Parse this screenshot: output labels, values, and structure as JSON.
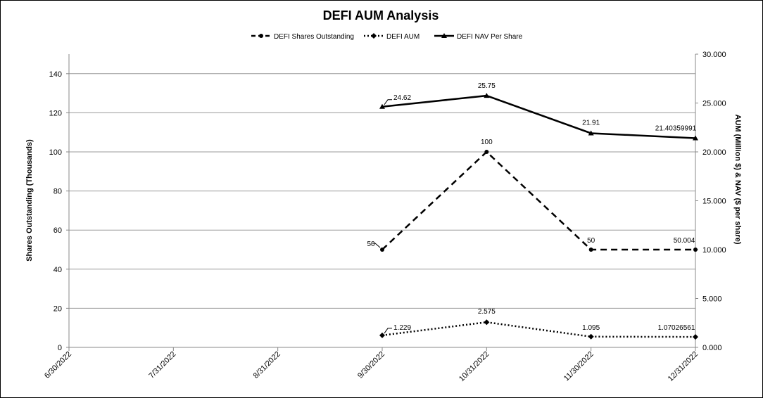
{
  "chart_data": {
    "type": "line",
    "title": "DEFI AUM Analysis",
    "x": [
      "6/30/2022",
      "7/31/2022",
      "8/31/2022",
      "9/30/2022",
      "10/31/2022",
      "11/30/2022",
      "12/31/2022"
    ],
    "ylabel_left": "Shares Outstanding (Thousands)",
    "ylabel_right": "AUM (Million $) & NAV ($ per share)",
    "ylim_left": [
      0,
      150
    ],
    "ylim_right": [
      0,
      30
    ],
    "yticks_left": [
      "0",
      "20",
      "40",
      "60",
      "80",
      "100",
      "120",
      "140"
    ],
    "yticks_right": [
      "0.000",
      "5.000",
      "10.000",
      "15.000",
      "20.000",
      "25.000",
      "30.000"
    ],
    "grid": true,
    "legend_position": "top",
    "series": [
      {
        "name": "DEFI Shares Outstanding",
        "axis": "left",
        "style": "dashed",
        "marker": "circle",
        "values": [
          null,
          null,
          null,
          50,
          100,
          50,
          50.004
        ],
        "labels": [
          "",
          "",
          "",
          "50",
          "100",
          "50",
          "50.004"
        ]
      },
      {
        "name": "DEFI AUM",
        "axis": "right",
        "style": "dotted",
        "marker": "diamond",
        "values": [
          null,
          null,
          null,
          1.229,
          2.575,
          1.095,
          1.07026561
        ],
        "labels": [
          "",
          "",
          "",
          "1.229",
          "2.575",
          "1.095",
          "1.07026561"
        ]
      },
      {
        "name": "DEFI NAV Per Share",
        "axis": "right",
        "style": "solid",
        "marker": "triangle",
        "values": [
          null,
          null,
          null,
          24.62,
          25.75,
          21.91,
          21.40359991
        ],
        "labels": [
          "",
          "",
          "",
          "24.62",
          "25.75",
          "21.91",
          "21.40359991"
        ]
      }
    ]
  }
}
